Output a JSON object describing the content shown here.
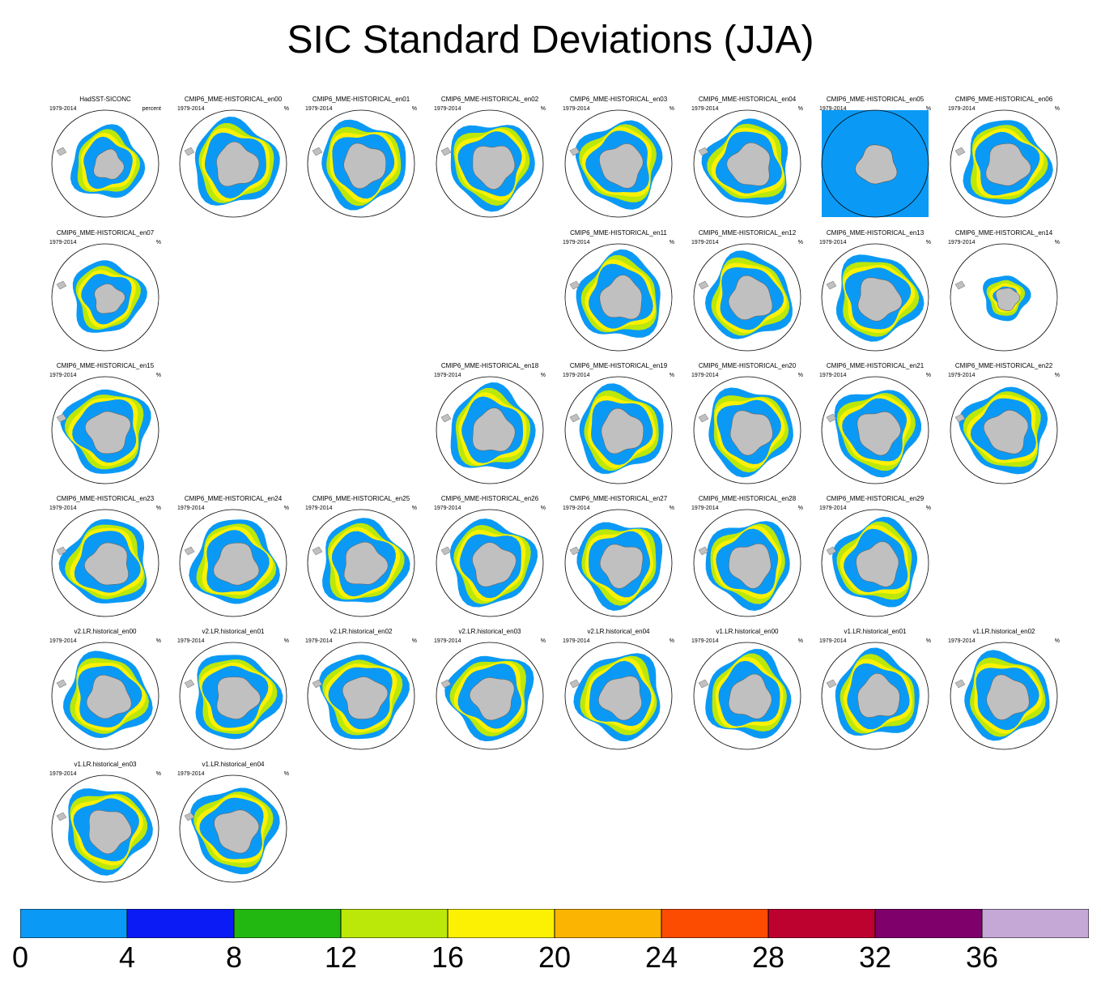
{
  "title": "SIC Standard Deviations (JJA)",
  "period": "1979-2014",
  "unit_first": "percent",
  "unit_other": "%",
  "panel_rows": [
    [
      "HadSST-SICONC",
      "CMIP6_MME-HISTORICAL_en00",
      "CMIP6_MME-HISTORICAL_en01",
      "CMIP6_MME-HISTORICAL_en02",
      "CMIP6_MME-HISTORICAL_en03",
      "CMIP6_MME-HISTORICAL_en04",
      "CMIP6_MME-HISTORICAL_en05",
      "CMIP6_MME-HISTORICAL_en06"
    ],
    [
      "CMIP6_MME-HISTORICAL_en07",
      "",
      "",
      "",
      "CMIP6_MME-HISTORICAL_en11",
      "CMIP6_MME-HISTORICAL_en12",
      "CMIP6_MME-HISTORICAL_en13",
      "CMIP6_MME-HISTORICAL_en14"
    ],
    [
      "CMIP6_MME-HISTORICAL_en15",
      "",
      "",
      "CMIP6_MME-HISTORICAL_en18",
      "CMIP6_MME-HISTORICAL_en19",
      "CMIP6_MME-HISTORICAL_en20",
      "CMIP6_MME-HISTORICAL_en21",
      "CMIP6_MME-HISTORICAL_en22"
    ],
    [
      "CMIP6_MME-HISTORICAL_en23",
      "CMIP6_MME-HISTORICAL_en24",
      "CMIP6_MME-HISTORICAL_en25",
      "CMIP6_MME-HISTORICAL_en26",
      "CMIP6_MME-HISTORICAL_en27",
      "CMIP6_MME-HISTORICAL_en28",
      "CMIP6_MME-HISTORICAL_en29",
      ""
    ],
    [
      "v2.LR.historical_en00",
      "v2.LR.historical_en01",
      "v2.LR.historical_en02",
      "v2.LR.historical_en03",
      "v2.LR.historical_en04",
      "v1.LR.historical_en00",
      "v1.LR.historical_en01",
      "v1.LR.historical_en02"
    ],
    [
      "v1.LR.historical_en03",
      "v1.LR.historical_en04",
      "",
      "",
      "",
      "",
      "",
      ""
    ]
  ],
  "filled_panel": "CMIP6_MME-HISTORICAL_en05",
  "colorbar": {
    "colors": [
      "#0a9af5",
      "#0a1bf5",
      "#23b811",
      "#bce809",
      "#fdf103",
      "#fcb402",
      "#fc4c01",
      "#bd022f",
      "#7f006b",
      "#c5a8d6"
    ],
    "labels": [
      "0",
      "4",
      "8",
      "12",
      "16",
      "20",
      "24",
      "28",
      "32",
      "36"
    ]
  },
  "map_colors": {
    "land": "#c0c0c0",
    "ocean": "#ffffff",
    "outline": "#000000"
  }
}
